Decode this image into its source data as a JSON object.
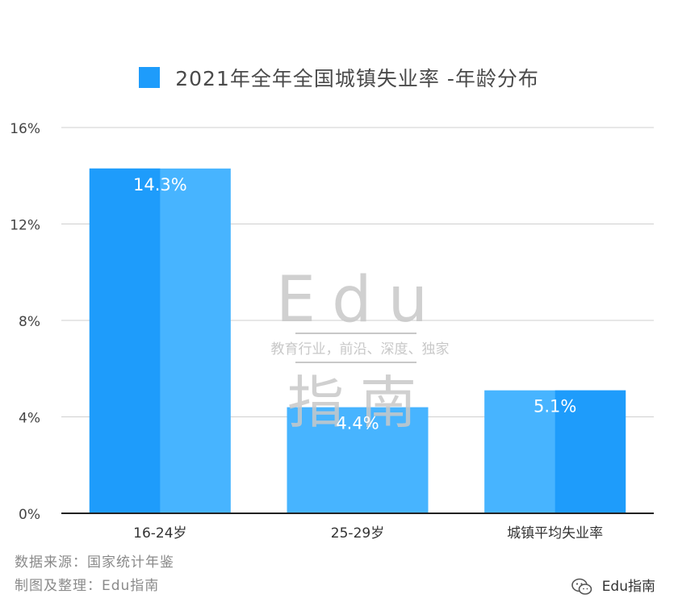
{
  "colors": {
    "bar_light": "#47b4ff",
    "bar_dark": "#1e9cfb",
    "grid": "#cfcfcf",
    "axis": "#222222",
    "watermark": "#c8c8c8"
  },
  "chart_data": {
    "type": "bar",
    "title": "2021年全年全国城镇失业率 -年龄分布",
    "categories": [
      "16-24岁",
      "25-29岁",
      "城镇平均失业率"
    ],
    "series": [
      {
        "values": [
          14.3,
          4.4,
          5.1
        ],
        "data_labels": [
          "14.3%",
          "4.4%",
          "5.1%"
        ]
      }
    ],
    "yticks": [
      "0%",
      "4%",
      "8%",
      "12%",
      "16%"
    ],
    "ytick_values": [
      0,
      4,
      8,
      12,
      16
    ],
    "ylim": [
      0,
      16
    ],
    "grid": true,
    "legend": "top"
  },
  "watermark": {
    "line1": "Edu",
    "line2": "教育行业，前沿、深度、独家",
    "line3": "指南"
  },
  "footer": {
    "source": "数据来源：国家统计年鉴",
    "maker": "制图及整理：Edu指南",
    "brand": "Edu指南",
    "brand_icon": "wechat-icon"
  }
}
